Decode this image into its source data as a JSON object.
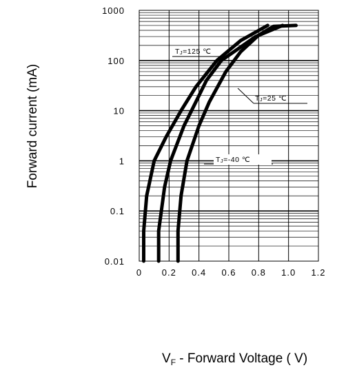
{
  "chart_data": {
    "type": "line",
    "x_axis": {
      "label_prefix": "V",
      "label_subscript": "F",
      "label_rest": " - Forward Voltage ( V)",
      "ticks": [
        "0",
        "0.2",
        "0.4",
        "0.6",
        "0.8",
        "1.0",
        "1.2"
      ],
      "range": [
        0,
        1.2
      ],
      "scale": "linear"
    },
    "y_axis": {
      "label": "Forward current (mA)",
      "ticks": [
        "0.01",
        "0.1",
        "1",
        "10",
        "100",
        "1000"
      ],
      "range": [
        0.01,
        1000
      ],
      "scale": "log"
    },
    "grid": true,
    "series": [
      {
        "name": "TJ=125℃",
        "label_parts": [
          "T",
          "J",
          "=125 ℃"
        ],
        "points": [
          [
            0.03,
            0.01
          ],
          [
            0.03,
            0.04
          ],
          [
            0.05,
            0.2
          ],
          [
            0.1,
            1
          ],
          [
            0.18,
            3
          ],
          [
            0.28,
            10
          ],
          [
            0.38,
            30
          ],
          [
            0.52,
            100
          ],
          [
            0.68,
            250
          ],
          [
            0.86,
            500
          ]
        ]
      },
      {
        "name": "TJ=25℃",
        "label_parts": [
          "T",
          "J",
          "=25 ℃"
        ],
        "points": [
          [
            0.13,
            0.01
          ],
          [
            0.13,
            0.04
          ],
          [
            0.17,
            0.3
          ],
          [
            0.21,
            1
          ],
          [
            0.3,
            5
          ],
          [
            0.38,
            15
          ],
          [
            0.45,
            40
          ],
          [
            0.55,
            100
          ],
          [
            0.78,
            300
          ],
          [
            0.96,
            500
          ]
        ]
      },
      {
        "name": "TJ=-40℃",
        "label_parts": [
          "T",
          "J",
          "=-40 ℃"
        ],
        "points": [
          [
            0.26,
            0.01
          ],
          [
            0.26,
            0.04
          ],
          [
            0.28,
            0.2
          ],
          [
            0.32,
            1
          ],
          [
            0.4,
            5
          ],
          [
            0.47,
            15
          ],
          [
            0.58,
            60
          ],
          [
            0.68,
            150
          ],
          [
            0.8,
            320
          ],
          [
            0.9,
            480
          ],
          [
            1.05,
            500
          ]
        ]
      }
    ]
  }
}
